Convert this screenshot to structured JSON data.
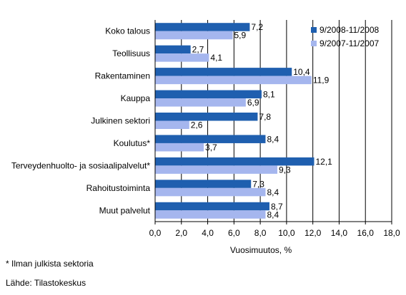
{
  "chart_data": {
    "type": "bar",
    "orientation": "horizontal",
    "categories": [
      "Koko talous",
      "Teollisuus",
      "Rakentaminen",
      "Kauppa",
      "Julkinen sektori",
      "Koulutus*",
      "Terveydenhuolto- ja sosiaalipalvelut*",
      "Rahoitustoiminta",
      "Muut palvelut"
    ],
    "series": [
      {
        "name": "9/2008-11/2008",
        "values": [
          7.2,
          2.7,
          10.4,
          8.1,
          7.8,
          8.4,
          12.1,
          7.3,
          8.7
        ],
        "labels": [
          "7,2",
          "2,7",
          "10,4",
          "8,1",
          "7,8",
          "8,4",
          "12,1",
          "7,3",
          "8,7"
        ]
      },
      {
        "name": "9/2007-11/2007",
        "values": [
          5.9,
          4.1,
          11.9,
          6.9,
          2.6,
          3.7,
          9.3,
          8.4,
          8.4
        ],
        "labels": [
          "5,9",
          "4,1",
          "11,9",
          "6,9",
          "2,6",
          "3,7",
          "9,3",
          "8,4",
          "8,4"
        ]
      }
    ],
    "xlabel": "Vuosimuutos, %",
    "xlim": [
      0,
      18
    ],
    "xticks": [
      "0,0",
      "2,0",
      "4,0",
      "6,0",
      "8,0",
      "10,0",
      "12,0",
      "14,0",
      "16,0",
      "18,0"
    ],
    "grid": "vertical",
    "legend_position": "top-right"
  },
  "colors": {
    "series_1": "#1F5FAF",
    "series_2": "#A5B6EE",
    "grid": "#000000"
  },
  "footnote": "* Ilman julkista sektoria",
  "source": "Lähde: Tilastokeskus"
}
